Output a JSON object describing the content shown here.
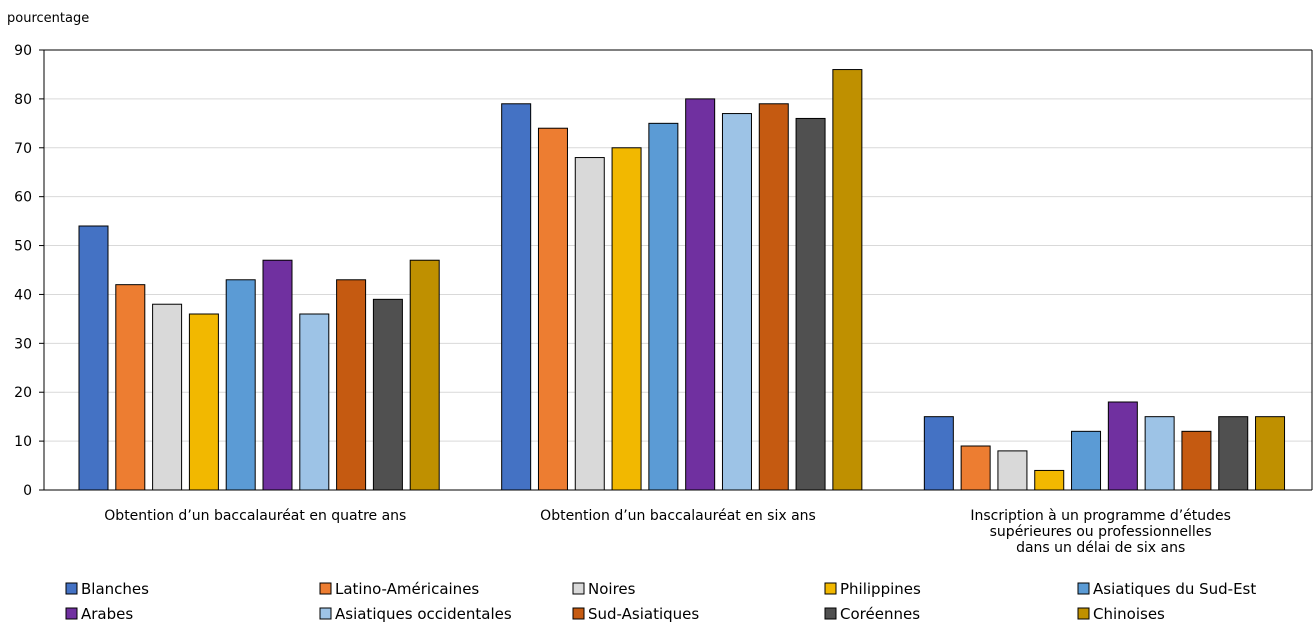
{
  "chart_data": {
    "type": "bar",
    "title": "",
    "ylabel": "pourcentage",
    "xlabel": "",
    "ylim": [
      0,
      90
    ],
    "yticks": [
      0,
      10,
      20,
      30,
      40,
      50,
      60,
      70,
      80,
      90
    ],
    "grid": true,
    "legend_position": "bottom",
    "categories": [
      [
        "Obtention d’un baccalauréat en quatre ans"
      ],
      [
        "Obtention d’un baccalauréat en six ans"
      ],
      [
        "Inscription à un programme d’études",
        "supérieures ou professionnelles",
        "dans un délai de six ans"
      ]
    ],
    "series": [
      {
        "name": "Blanches",
        "color": "#4472c4",
        "values": [
          54,
          79,
          15
        ]
      },
      {
        "name": "Latino-Américaines",
        "color": "#ed7d31",
        "values": [
          42,
          74,
          9
        ]
      },
      {
        "name": "Noires",
        "color": "#d9d9d9",
        "values": [
          38,
          68,
          8
        ]
      },
      {
        "name": "Philippines",
        "color": "#f2b800",
        "values": [
          36,
          70,
          4
        ]
      },
      {
        "name": "Asiatiques du Sud-Est",
        "color": "#5b9bd5",
        "values": [
          43,
          75,
          12
        ]
      },
      {
        "name": "Arabes",
        "color": "#7030a0",
        "values": [
          47,
          80,
          18
        ]
      },
      {
        "name": "Asiatiques occidentales",
        "color": "#9dc3e6",
        "values": [
          36,
          77,
          15
        ]
      },
      {
        "name": "Sud-Asiatiques",
        "color": "#c55a11",
        "values": [
          43,
          79,
          12
        ]
      },
      {
        "name": "Coréennes",
        "color": "#505050",
        "values": [
          39,
          76,
          15
        ]
      },
      {
        "name": "Chinoises",
        "color": "#bf9000",
        "values": [
          47,
          86,
          15
        ]
      }
    ]
  }
}
